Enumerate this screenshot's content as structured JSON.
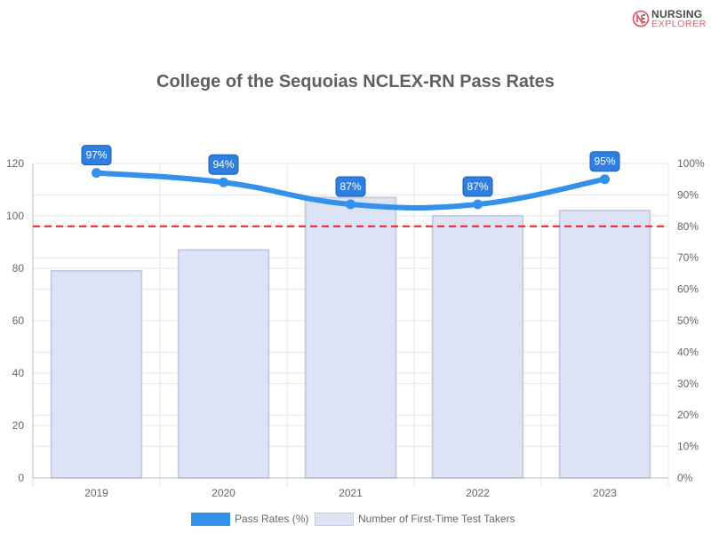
{
  "logo": {
    "line1": "NURSING",
    "line2": "EXPLORER",
    "mark": "NE"
  },
  "colors": {
    "line": "#3390eb",
    "bar_fill": "#dde3f5",
    "bar_stroke": "#c7cce0",
    "threshold": "#e3222f",
    "grid": "#e6e6e6",
    "label_bg": "#2f7fe0",
    "label_border": "#1a5fb4"
  },
  "chart_data": {
    "type": "bar",
    "title": "College of the Sequoias NCLEX-RN Pass Rates",
    "categories": [
      "2019",
      "2020",
      "2021",
      "2022",
      "2023"
    ],
    "series": [
      {
        "name": "Pass Rates (%)",
        "type": "line",
        "axis": "right",
        "values": [
          97,
          94,
          87,
          87,
          95
        ],
        "labels": [
          "97%",
          "94%",
          "87%",
          "87%",
          "95%"
        ]
      },
      {
        "name": "Number of First-Time Test Takers",
        "type": "bar",
        "axis": "left",
        "values": [
          79,
          87,
          107,
          100,
          102
        ]
      }
    ],
    "threshold_line": {
      "axis": "right",
      "value": 80,
      "style": "dashed"
    },
    "left_axis": {
      "ylim": [
        0,
        120
      ],
      "ticks": [
        "0",
        "20",
        "40",
        "60",
        "80",
        "100",
        "120"
      ]
    },
    "right_axis": {
      "ylim": [
        0,
        100
      ],
      "ticks": [
        "0%",
        "10%",
        "20%",
        "30%",
        "40%",
        "50%",
        "60%",
        "70%",
        "80%",
        "90%",
        "100%"
      ]
    },
    "xlabel": "",
    "ylabel": "",
    "grid": true,
    "legend_position": "bottom"
  }
}
